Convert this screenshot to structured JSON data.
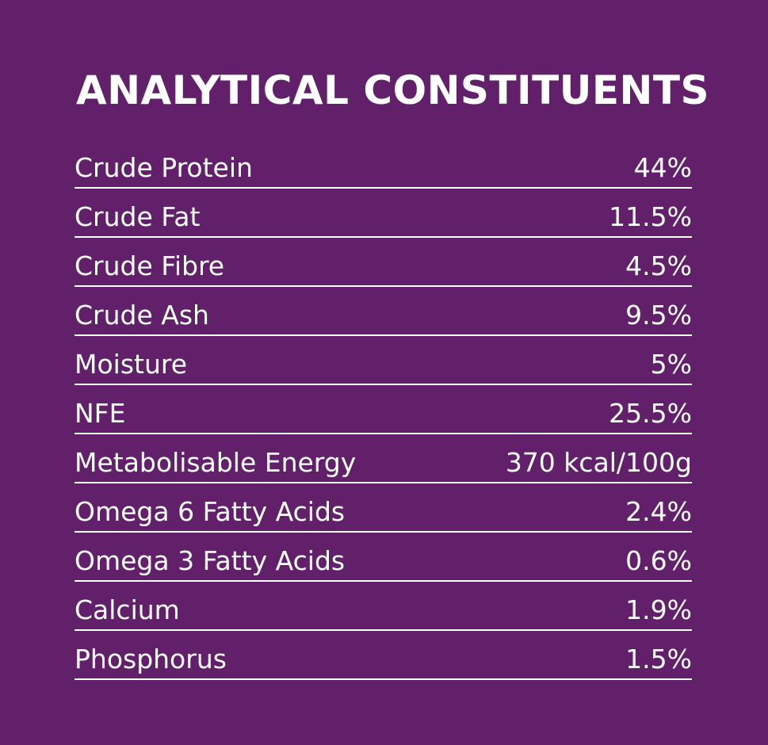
{
  "title": "ANALYTICAL CONSTITUENTS",
  "colors": {
    "background": "#62206b",
    "text": "#ffffff"
  },
  "rows": [
    {
      "label": "Crude Protein",
      "value": "44%"
    },
    {
      "label": "Crude Fat",
      "value": "11.5%"
    },
    {
      "label": "Crude Fibre",
      "value": "4.5%"
    },
    {
      "label": "Crude Ash",
      "value": "9.5%"
    },
    {
      "label": "Moisture",
      "value": "5%"
    },
    {
      "label": "NFE",
      "value": "25.5%"
    },
    {
      "label": "Metabolisable Energy",
      "value": "370 kcal/100g"
    },
    {
      "label": "Omega 6 Fatty Acids",
      "value": "2.4%"
    },
    {
      "label": "Omega 3 Fatty Acids",
      "value": "0.6%"
    },
    {
      "label": "Calcium",
      "value": "1.9%"
    },
    {
      "label": "Phosphorus",
      "value": "1.5%"
    }
  ]
}
